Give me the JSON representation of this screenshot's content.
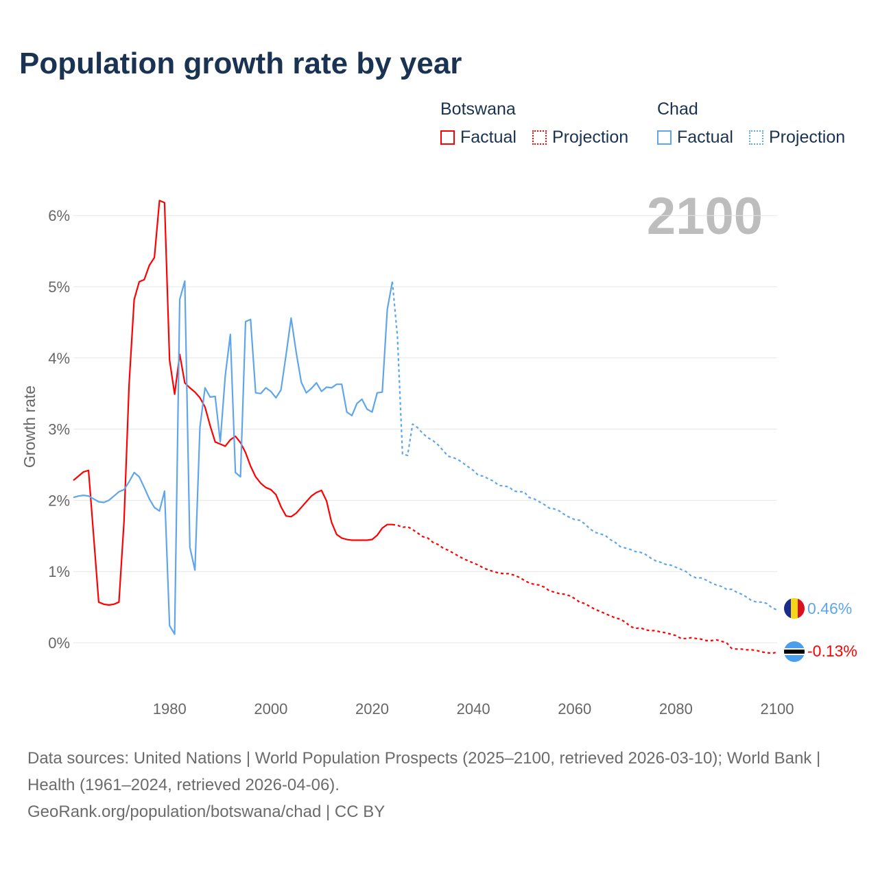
{
  "title": "Population growth rate by year",
  "legend": {
    "groups": [
      {
        "name": "Botswana",
        "factual": "Factual",
        "projection": "Projection",
        "color": "#ff0000"
      },
      {
        "name": "Chad",
        "factual": "Factual",
        "projection": "Projection",
        "color": "#5ea5ec"
      }
    ]
  },
  "current_year": "2100",
  "end_labels": {
    "chad": "0.46%",
    "botswana": "-0.13%"
  },
  "footer": {
    "sources": "Data sources: United Nations | World Population Prospects (2025–2100, retrieved 2026-03-10); World Bank | Health (1961–2024, retrieved 2026-04-06).",
    "credit": "GeoRank.org/population/botswana/chad | CC BY"
  },
  "chart_data": {
    "type": "line",
    "title": "Population growth rate by year",
    "xlabel": "",
    "ylabel": "Growth rate",
    "xlim": [
      1961,
      2100
    ],
    "ylim": [
      -0.6,
      6.4
    ],
    "xticks": [
      1980,
      2000,
      2020,
      2040,
      2060,
      2080,
      2100
    ],
    "xtick_labels": [
      "1980",
      "2000",
      "2020",
      "2040",
      "2060",
      "2080",
      "2100"
    ],
    "yticks": [
      0,
      1,
      2,
      3,
      4,
      5,
      6
    ],
    "ytick_labels": [
      "0%",
      "1%",
      "2%",
      "3%",
      "4%",
      "5%",
      "6%"
    ],
    "grid": true,
    "legend_position": "top-right",
    "series": [
      {
        "name": "Botswana Factual",
        "color": "#ff0000",
        "style": "solid",
        "x_start": 1961,
        "values": [
          2.28,
          2.34,
          2.4,
          2.42,
          1.5,
          0.57,
          0.54,
          0.53,
          0.54,
          0.57,
          1.7,
          3.63,
          4.82,
          5.07,
          5.1,
          5.3,
          5.41,
          6.21,
          6.18,
          3.97,
          3.49,
          4.05,
          3.65,
          3.58,
          3.52,
          3.44,
          3.31,
          3.05,
          2.82,
          2.79,
          2.76,
          2.85,
          2.9,
          2.81,
          2.67,
          2.48,
          2.33,
          2.24,
          2.18,
          2.15,
          2.08,
          1.91,
          1.78,
          1.77,
          1.82,
          1.9,
          1.98,
          2.06,
          2.11,
          2.14,
          1.99,
          1.69,
          1.52,
          1.47,
          1.45,
          1.44,
          1.44,
          1.44,
          1.44,
          1.45,
          1.51,
          1.61,
          1.66,
          1.66
        ]
      },
      {
        "name": "Botswana Projection",
        "color": "#ff0000",
        "style": "dotted",
        "x_start": 2025,
        "values": [
          1.65,
          1.62,
          1.63,
          1.59,
          1.54,
          1.49,
          1.47,
          1.41,
          1.38,
          1.33,
          1.3,
          1.26,
          1.22,
          1.18,
          1.15,
          1.12,
          1.09,
          1.05,
          1.02,
          1.0,
          0.98,
          0.97,
          0.97,
          0.95,
          0.92,
          0.88,
          0.84,
          0.82,
          0.81,
          0.78,
          0.73,
          0.71,
          0.69,
          0.68,
          0.66,
          0.62,
          0.57,
          0.55,
          0.51,
          0.47,
          0.44,
          0.41,
          0.38,
          0.35,
          0.33,
          0.29,
          0.23,
          0.2,
          0.21,
          0.18,
          0.17,
          0.17,
          0.15,
          0.14,
          0.12,
          0.1,
          0.06,
          0.06,
          0.07,
          0.06,
          0.05,
          0.03,
          0.03,
          0.04,
          0.02,
          0.0,
          -0.08,
          -0.09,
          -0.09,
          -0.1,
          -0.1,
          -0.11,
          -0.13,
          -0.14,
          -0.15,
          -0.13
        ]
      },
      {
        "name": "Chad Factual",
        "color": "#5ea5ec",
        "style": "solid",
        "x_start": 1961,
        "values": [
          2.04,
          2.06,
          2.07,
          2.06,
          2.02,
          1.98,
          1.97,
          2.0,
          2.06,
          2.12,
          2.15,
          2.26,
          2.39,
          2.33,
          2.18,
          2.02,
          1.9,
          1.85,
          2.13,
          0.24,
          0.12,
          4.82,
          5.08,
          1.34,
          1.02,
          3.03,
          3.58,
          3.45,
          3.46,
          2.82,
          3.75,
          4.33,
          2.39,
          2.33,
          4.51,
          4.54,
          3.51,
          3.5,
          3.58,
          3.53,
          3.44,
          3.55,
          4.04,
          4.56,
          4.08,
          3.66,
          3.51,
          3.57,
          3.65,
          3.53,
          3.59,
          3.58,
          3.63,
          3.63,
          3.24,
          3.19,
          3.36,
          3.42,
          3.28,
          3.24,
          3.51,
          3.52,
          4.68,
          5.07
        ]
      },
      {
        "name": "Chad Projection",
        "color": "#5ea5ec",
        "style": "dotted",
        "x_start": 2025,
        "values": [
          4.3,
          2.65,
          2.63,
          3.07,
          3.02,
          2.94,
          2.88,
          2.84,
          2.78,
          2.7,
          2.62,
          2.6,
          2.57,
          2.52,
          2.47,
          2.42,
          2.35,
          2.34,
          2.3,
          2.27,
          2.21,
          2.2,
          2.19,
          2.13,
          2.12,
          2.12,
          2.04,
          2.02,
          1.98,
          1.94,
          1.89,
          1.88,
          1.85,
          1.8,
          1.76,
          1.73,
          1.72,
          1.67,
          1.6,
          1.55,
          1.53,
          1.51,
          1.45,
          1.41,
          1.35,
          1.33,
          1.31,
          1.28,
          1.27,
          1.24,
          1.19,
          1.15,
          1.13,
          1.1,
          1.09,
          1.06,
          1.03,
          1.0,
          0.94,
          0.91,
          0.91,
          0.88,
          0.84,
          0.81,
          0.79,
          0.75,
          0.75,
          0.71,
          0.68,
          0.64,
          0.59,
          0.57,
          0.57,
          0.55,
          0.49,
          0.46
        ]
      }
    ]
  }
}
